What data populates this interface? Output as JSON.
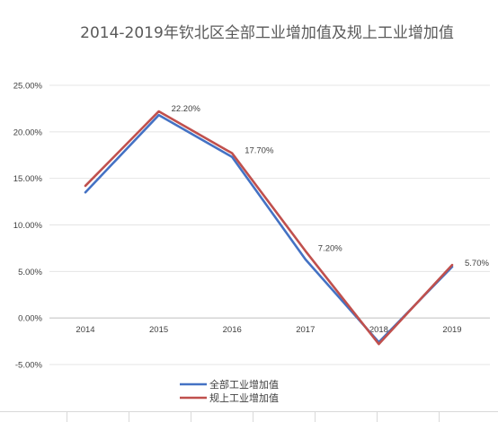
{
  "chart_data": {
    "type": "line",
    "title": "2014-2019年钦北区全部工业增加值及规上工业增加值",
    "categories": [
      "2014",
      "2015",
      "2016",
      "2017",
      "2018",
      "2019"
    ],
    "series": [
      {
        "name": "全部工业增加值",
        "color": "#4472c4",
        "values": [
          13.5,
          21.8,
          17.3,
          6.3,
          -2.6,
          5.5
        ]
      },
      {
        "name": "规上工业增加值",
        "color": "#c0504d",
        "values": [
          14.2,
          22.2,
          17.7,
          7.2,
          -2.8,
          5.7
        ]
      }
    ],
    "data_labels": {
      "series": "规上工业增加值",
      "labels": [
        "",
        "22.20%",
        "17.70%",
        "7.20%",
        "",
        "5.70%"
      ]
    },
    "y_ticks": [
      "25.00%",
      "20.00%",
      "15.00%",
      "10.00%",
      "5.00%",
      "0.00%",
      "-5.00%"
    ],
    "ylim": [
      -5,
      25
    ],
    "grid": true,
    "legend": "bottom"
  }
}
